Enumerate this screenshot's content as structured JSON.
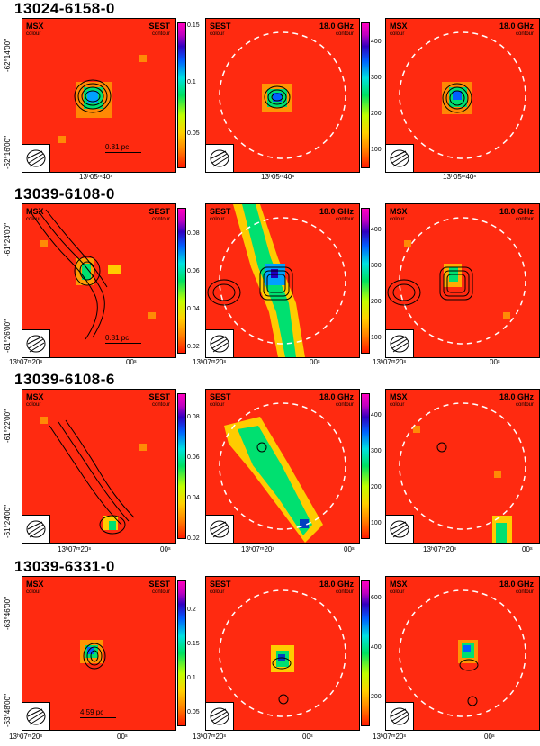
{
  "rows": [
    {
      "title": "13024-6158-0",
      "panels": [
        {
          "left_label": "MSX",
          "left_sub": "colour",
          "right_label": "SEST",
          "right_sub": "contour",
          "scale": "0.81 pc"
        },
        {
          "left_label": "SEST",
          "left_sub": "colour",
          "right_label": "18.0 GHz",
          "right_sub": "contour"
        },
        {
          "left_label": "MSX",
          "left_sub": "colour",
          "right_label": "18.0 GHz",
          "right_sub": "contour"
        }
      ],
      "cbar1": [
        "0.15",
        "0.1",
        "0.05"
      ],
      "cbar2": [
        "400",
        "300",
        "200",
        "100"
      ],
      "ylabels": [
        "-62°14'00''",
        "-62°16'00''"
      ],
      "xlabels": [
        "13ʰ05ᵐ40ˢ",
        "13ʰ05ᵐ40ˢ",
        "13ʰ05ᵐ40ˢ"
      ]
    },
    {
      "title": "13039-6108-0",
      "panels": [
        {
          "left_label": "MSX",
          "left_sub": "colour",
          "right_label": "SEST",
          "right_sub": "contour",
          "scale": "0.81 pc"
        },
        {
          "left_label": "SEST",
          "left_sub": "colour",
          "right_label": "18.0 GHz",
          "right_sub": "contour"
        },
        {
          "left_label": "MSX",
          "left_sub": "colour",
          "right_label": "18.0 GHz",
          "right_sub": "contour"
        }
      ],
      "cbar1": [
        "0.08",
        "0.06",
        "0.04",
        "0.02"
      ],
      "cbar2": [
        "400",
        "300",
        "200",
        "100"
      ],
      "ylabels": [
        "-61°24'00''",
        "-61°26'00''"
      ],
      "xlabels": [
        "13ʰ07ᵐ20ˢ",
        "00ˢ",
        "13ʰ07ᵐ20ˢ",
        "00ˢ",
        "13ʰ07ᵐ20ˢ",
        "00ˢ"
      ]
    },
    {
      "title": "13039-6108-6",
      "panels": [
        {
          "left_label": "MSX",
          "left_sub": "colour",
          "right_label": "SEST",
          "right_sub": "contour"
        },
        {
          "left_label": "SEST",
          "left_sub": "colour",
          "right_label": "18.0 GHz",
          "right_sub": "contour"
        },
        {
          "left_label": "MSX",
          "left_sub": "colour",
          "right_label": "18.0 GHz",
          "right_sub": "contour"
        }
      ],
      "cbar1": [
        "0.08",
        "0.06",
        "0.04",
        "0.02"
      ],
      "cbar2": [
        "400",
        "300",
        "200",
        "100"
      ],
      "ylabels": [
        "-61°22'00''",
        "-61°24'00''"
      ],
      "xlabels": [
        "13ʰ07ᵐ20ˢ",
        "00ˢ",
        "13ʰ07ᵐ20ˢ",
        "00ˢ",
        "13ʰ07ᵐ20ˢ",
        "00ˢ"
      ]
    },
    {
      "title": "13039-6331-0",
      "panels": [
        {
          "left_label": "MSX",
          "left_sub": "colour",
          "right_label": "SEST",
          "right_sub": "contour",
          "scale": "4.59 pc"
        },
        {
          "left_label": "SEST",
          "left_sub": "colour",
          "right_label": "18.0 GHz",
          "right_sub": "contour"
        },
        {
          "left_label": "MSX",
          "left_sub": "colour",
          "right_label": "18.0 GHz",
          "right_sub": "contour"
        }
      ],
      "cbar1": [
        "0.2",
        "0.15",
        "0.1",
        "0.05"
      ],
      "cbar2": [
        "600",
        "400",
        "200"
      ],
      "ylabels": [
        "-63°46'00''",
        "-63°48'00''"
      ],
      "xlabels": [
        "13ʰ07ᵐ20ˢ",
        "00ˢ",
        "13ʰ07ᵐ20ˢ",
        "00ˢ",
        "13ʰ07ᵐ20ˢ",
        "00ˢ"
      ]
    }
  ]
}
